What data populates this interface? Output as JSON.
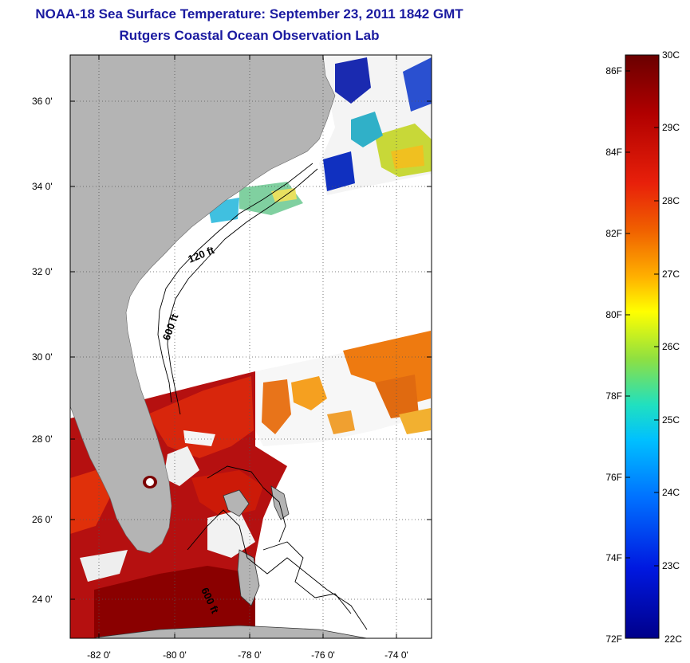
{
  "header": {
    "title": "NOAA-18 Sea Surface Temperature:  September 23, 2011 1842 GMT",
    "subtitle": "Rutgers Coastal Ocean Observation Lab"
  },
  "map": {
    "lat_ticks": [
      "36 0'",
      "34 0'",
      "32 0'",
      "30 0'",
      "28 0'",
      "26 0'",
      "24 0'"
    ],
    "lon_ticks": [
      "-82 0'",
      "-80 0'",
      "-78 0'",
      "-76 0'",
      "-74 0'"
    ],
    "contour_labels": [
      "120 ft",
      "600 ft",
      "600 ft"
    ],
    "colors": {
      "land": "#b4b4b4",
      "frame": "#000000",
      "grid": "#555555"
    }
  },
  "colorbar": {
    "celsius_labels": [
      "30C",
      "29C",
      "28C",
      "27C",
      "26C",
      "25C",
      "24C",
      "23C",
      "22C"
    ],
    "fahrenheit_labels": [
      "86F",
      "84F",
      "82F",
      "80F",
      "78F",
      "76F",
      "74F",
      "72F"
    ],
    "stops": [
      "#7a0000",
      "#b80000",
      "#e81a00",
      "#ff6a00",
      "#ffb000",
      "#ffff00",
      "#7fe040",
      "#00e0d0",
      "#00a0ff",
      "#0040ff",
      "#0000b0"
    ]
  }
}
